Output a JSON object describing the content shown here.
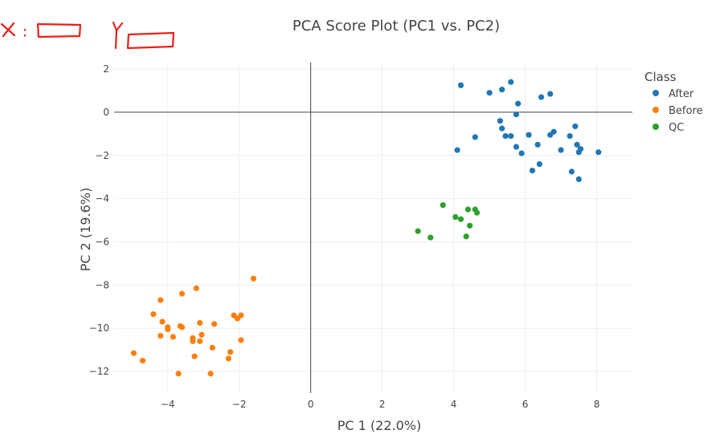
{
  "chart_data": {
    "type": "scatter",
    "title": "PCA Score Plot (PC1 vs. PC2)",
    "xlabel": "PC 1 (22.0%)",
    "ylabel": "PC 2 (19.6%)",
    "xlim": [
      -5.5,
      9.0
    ],
    "ylim": [
      -13.0,
      2.3
    ],
    "xticks": [
      -4,
      -2,
      0,
      2,
      4,
      6,
      8
    ],
    "yticks": [
      2,
      0,
      -2,
      -4,
      -6,
      -8,
      -10,
      -12
    ],
    "grid": true,
    "legend": {
      "title": "Class",
      "position": "top-right"
    },
    "series": [
      {
        "name": "After",
        "color": "#1f77b4",
        "points": [
          [
            4.2,
            1.25
          ],
          [
            5.6,
            1.4
          ],
          [
            5.0,
            0.9
          ],
          [
            5.35,
            1.05
          ],
          [
            6.45,
            0.7
          ],
          [
            6.7,
            0.85
          ],
          [
            5.8,
            0.4
          ],
          [
            5.75,
            -0.1
          ],
          [
            5.3,
            -0.4
          ],
          [
            5.35,
            -0.75
          ],
          [
            4.6,
            -1.15
          ],
          [
            5.45,
            -1.1
          ],
          [
            5.6,
            -1.1
          ],
          [
            5.9,
            -1.9
          ],
          [
            5.75,
            -1.6
          ],
          [
            6.1,
            -1.05
          ],
          [
            6.35,
            -1.5
          ],
          [
            6.7,
            -1.05
          ],
          [
            6.8,
            -0.9
          ],
          [
            7.0,
            -1.75
          ],
          [
            7.25,
            -1.1
          ],
          [
            7.4,
            -0.65
          ],
          [
            7.45,
            -1.5
          ],
          [
            7.5,
            -1.85
          ],
          [
            7.55,
            -1.7
          ],
          [
            8.05,
            -1.85
          ],
          [
            4.1,
            -1.75
          ],
          [
            6.4,
            -2.4
          ],
          [
            6.2,
            -2.7
          ],
          [
            7.3,
            -2.75
          ],
          [
            7.5,
            -3.1
          ]
        ]
      },
      {
        "name": "Before",
        "color": "#ff7f0e",
        "points": [
          [
            -1.6,
            -7.7
          ],
          [
            -3.2,
            -8.15
          ],
          [
            -3.6,
            -8.4
          ],
          [
            -4.2,
            -8.7
          ],
          [
            -4.4,
            -9.35
          ],
          [
            -4.15,
            -9.7
          ],
          [
            -4.0,
            -9.95
          ],
          [
            -3.65,
            -9.9
          ],
          [
            -3.6,
            -9.95
          ],
          [
            -3.1,
            -9.75
          ],
          [
            -2.7,
            -9.8
          ],
          [
            -2.15,
            -9.4
          ],
          [
            -2.05,
            -9.55
          ],
          [
            -1.95,
            -9.4
          ],
          [
            -4.2,
            -10.35
          ],
          [
            -3.85,
            -10.4
          ],
          [
            -3.3,
            -10.45
          ],
          [
            -3.05,
            -10.3
          ],
          [
            -3.1,
            -10.6
          ],
          [
            -3.3,
            -10.6
          ],
          [
            -1.95,
            -10.55
          ],
          [
            -2.75,
            -10.9
          ],
          [
            -2.25,
            -11.1
          ],
          [
            -3.25,
            -11.3
          ],
          [
            -2.3,
            -11.4
          ],
          [
            -4.95,
            -11.15
          ],
          [
            -4.7,
            -11.5
          ],
          [
            -3.7,
            -12.1
          ],
          [
            -2.8,
            -12.1
          ],
          [
            -4.0,
            -10.05
          ]
        ]
      },
      {
        "name": "QC",
        "color": "#2ca02c",
        "points": [
          [
            3.7,
            -4.3
          ],
          [
            4.4,
            -4.5
          ],
          [
            4.6,
            -4.5
          ],
          [
            4.65,
            -4.65
          ],
          [
            4.05,
            -4.85
          ],
          [
            4.2,
            -4.95
          ],
          [
            4.45,
            -5.25
          ],
          [
            3.0,
            -5.5
          ],
          [
            3.35,
            -5.8
          ],
          [
            4.35,
            -5.75
          ]
        ]
      }
    ]
  },
  "annotation": {
    "x_letter": "X",
    "y_letter": "Y",
    "color": "#e8201a"
  }
}
